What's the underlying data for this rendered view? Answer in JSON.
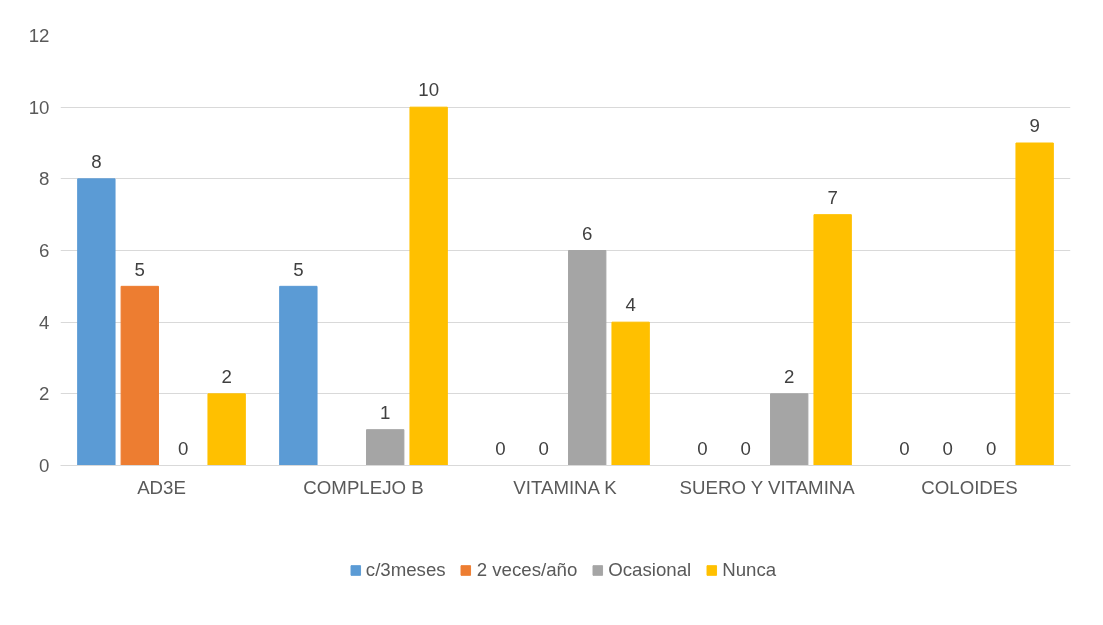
{
  "chart_data": {
    "type": "bar",
    "categories": [
      "AD3E",
      "COMPLEJO B",
      "VITAMINA K",
      "SUERO Y VITAMINA",
      "COLOIDES"
    ],
    "series": [
      {
        "name": "c/3meses",
        "color": "#5b9bd5",
        "values": [
          8,
          5,
          0,
          0,
          0
        ],
        "value_labels": [
          "8",
          "5",
          "0",
          "0",
          "0"
        ]
      },
      {
        "name": "2 veces/año",
        "color": "#ed7d31",
        "values": [
          5,
          null,
          0,
          0,
          0
        ],
        "value_labels": [
          "5",
          null,
          "0",
          "0",
          "0"
        ]
      },
      {
        "name": "Ocasional",
        "color": "#a5a5a5",
        "values": [
          0,
          1,
          6,
          2,
          0
        ],
        "value_labels": [
          "0",
          "1",
          "6",
          "2",
          "0"
        ]
      },
      {
        "name": "Nunca",
        "color": "#ffc000",
        "values": [
          2,
          10,
          4,
          7,
          9
        ],
        "value_labels": [
          "2",
          "10",
          "4",
          "7",
          "9"
        ]
      }
    ],
    "ylim": [
      0,
      12
    ],
    "yticks": [
      0,
      2,
      4,
      6,
      8,
      10,
      12
    ],
    "grid": "y",
    "legend": "bottom"
  }
}
